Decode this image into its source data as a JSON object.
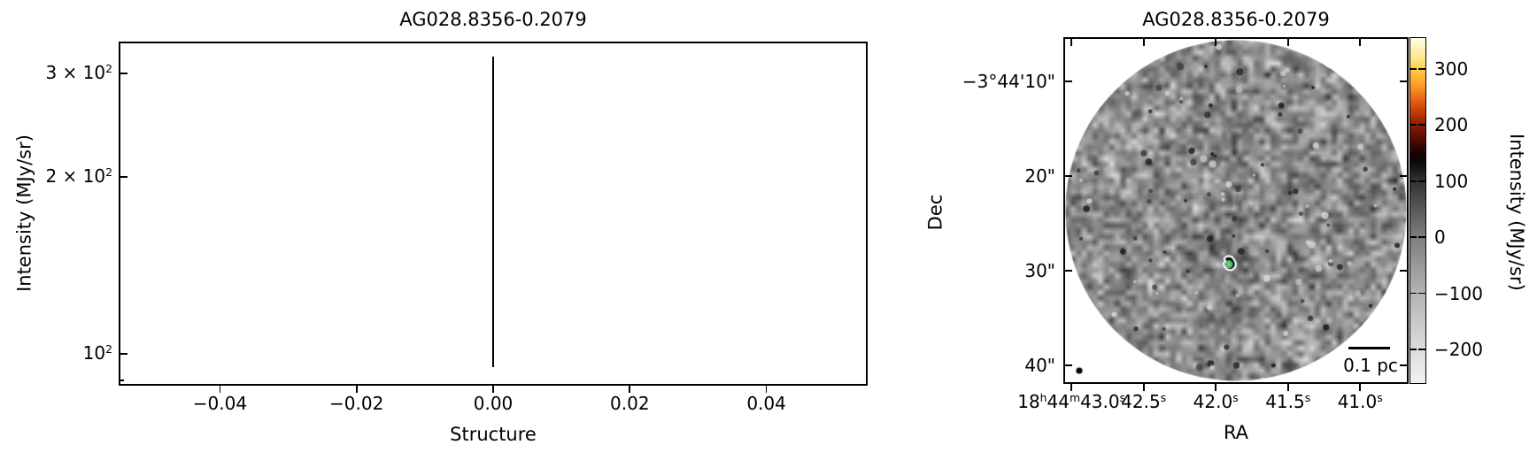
{
  "figure": {
    "background": "#ffffff",
    "accent_black": "#000000"
  },
  "chart_data": [
    {
      "type": "line",
      "panel": "left",
      "title": "AG028.8356-0.2079",
      "xlabel": "Structure",
      "ylabel": "Intensity (MJy/sr)",
      "yscale": "log",
      "grid": false,
      "xlim": [
        -0.0547,
        0.0547
      ],
      "ylim": [
        88.5,
        338.6
      ],
      "x_ticks": [
        {
          "v": -0.04,
          "label": "−0.04"
        },
        {
          "v": -0.02,
          "label": "−0.02"
        },
        {
          "v": 0.0,
          "label": "0.00"
        },
        {
          "v": 0.02,
          "label": "0.02"
        },
        {
          "v": 0.04,
          "label": "0.04"
        }
      ],
      "y_ticks": [
        {
          "v": 300,
          "segs": [
            {
              "t": "3 × 10"
            },
            {
              "t": "2",
              "sup": true
            }
          ]
        },
        {
          "v": 200,
          "segs": [
            {
              "t": "2 × 10"
            },
            {
              "t": "2",
              "sup": true
            }
          ]
        },
        {
          "v": 100,
          "segs": [
            {
              "t": "10"
            },
            {
              "t": "2",
              "sup": true
            }
          ]
        }
      ],
      "y_minor_ticks": [
        90
      ],
      "series": [
        {
          "name": "structure-intensity-range",
          "style": "vertical-line",
          "x": 0.0,
          "y_min": 95,
          "y_max": 320,
          "color": "#000000"
        }
      ]
    },
    {
      "type": "heatmap",
      "panel": "right",
      "title": "AG028.8356-0.2079",
      "xlabel": "RA",
      "ylabel": "Dec",
      "ra_axis_seconds_lim": [
        43.05,
        40.67
      ],
      "dec_axis_arcsec_offset_lim": [
        5.4,
        41.9
      ],
      "ra_ticks": [
        {
          "v": 43.0,
          "segs": [
            {
              "t": "18"
            },
            {
              "t": "h",
              "sup": true
            },
            {
              "t": "44"
            },
            {
              "t": "m",
              "sup": true
            },
            {
              "t": "43.0"
            },
            {
              "t": "s",
              "sup": true
            }
          ]
        },
        {
          "v": 42.5,
          "segs": [
            {
              "t": "42.5"
            },
            {
              "t": "s",
              "sup": true
            }
          ]
        },
        {
          "v": 42.0,
          "segs": [
            {
              "t": "42.0"
            },
            {
              "t": "s",
              "sup": true
            }
          ]
        },
        {
          "v": 41.5,
          "segs": [
            {
              "t": "41.5"
            },
            {
              "t": "s",
              "sup": true
            }
          ]
        },
        {
          "v": 41.0,
          "segs": [
            {
              "t": "41.0"
            },
            {
              "t": "s",
              "sup": true
            }
          ]
        }
      ],
      "dec_ticks": [
        {
          "v": 10,
          "label": "−3°44'10\""
        },
        {
          "v": 20,
          "label": "20\""
        },
        {
          "v": 30,
          "label": "30\""
        },
        {
          "v": 40,
          "label": "40\""
        }
      ],
      "image": {
        "description": "circular grayscale noise map clipped to round field of view, white outside circle, faint darker vertical lane through centre",
        "field_shape": "circle"
      },
      "source": {
        "ra_seconds": 41.9,
        "dec_arcsec_offset": 29.3,
        "contour_outer_color": "#ffffff",
        "contour_mid_color": "#2dd3be",
        "contour_inner_color": "#86d93c",
        "peak_color": "#ffe14a"
      },
      "beam": {
        "shape": "filled-circle",
        "color": "#000000"
      },
      "scalebar": {
        "label": "0.1 pc"
      },
      "colorbar": {
        "label": "Intensity (MJy/sr)",
        "ticks": [
          300,
          200,
          100,
          0,
          -100,
          -200
        ],
        "vmin": -260,
        "vmax": 355,
        "gradient": [
          {
            "pct": 0,
            "color": "#fffce6"
          },
          {
            "pct": 5.7,
            "color": "#ffe98e"
          },
          {
            "pct": 8.9,
            "color": "#ffcf4a"
          },
          {
            "pct": 13.8,
            "color": "#ff9a28"
          },
          {
            "pct": 19.5,
            "color": "#d94f0b"
          },
          {
            "pct": 25.2,
            "color": "#8f1a00"
          },
          {
            "pct": 30,
            "color": "#4a0a00"
          },
          {
            "pct": 33.7,
            "color": "#140200"
          },
          {
            "pct": 36,
            "color": "#0b0b0b"
          },
          {
            "pct": 41.5,
            "color": "#333333"
          },
          {
            "pct": 57.7,
            "color": "#7e7e7e"
          },
          {
            "pct": 74,
            "color": "#b4b4b4"
          },
          {
            "pct": 90.2,
            "color": "#dcdcdc"
          },
          {
            "pct": 100,
            "color": "#f1f1f1"
          }
        ]
      }
    }
  ]
}
